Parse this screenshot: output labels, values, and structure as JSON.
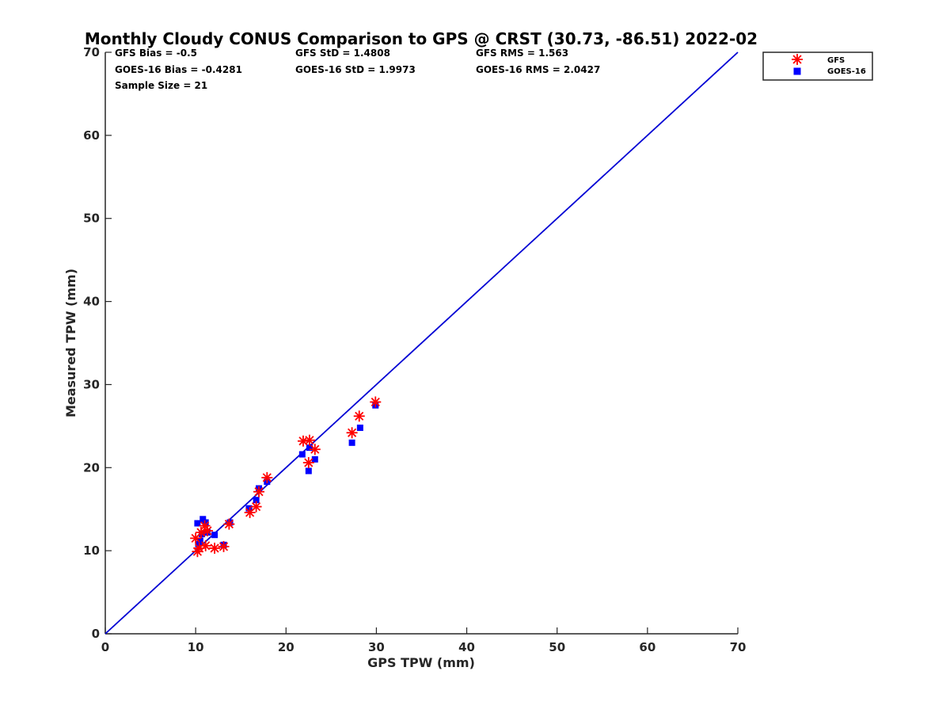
{
  "chart_data": {
    "type": "scatter",
    "title": "Monthly Cloudy CONUS Comparison to GPS @ CRST (30.73, -86.51) 2022-02",
    "xlabel": "GPS TPW (mm)",
    "ylabel": "Measured TPW (mm)",
    "xlim": [
      0,
      70
    ],
    "ylim": [
      0,
      70
    ],
    "xticks": [
      0,
      10,
      20,
      30,
      40,
      50,
      60,
      70
    ],
    "yticks": [
      0,
      10,
      20,
      30,
      40,
      50,
      60,
      70
    ],
    "grid": false,
    "legend_position": "outside-top-right",
    "stats": {
      "gfs_bias": "GFS Bias = -0.5",
      "goes_bias": "GOES-16 Bias = -0.4281",
      "sample_size": "Sample Size = 21",
      "gfs_std": "GFS StD = 1.4808",
      "goes_std": "GOES-16 StD = 1.9973",
      "gfs_rms": "GFS RMS = 1.563",
      "goes_rms": "GOES-16 RMS = 2.0427"
    },
    "reference_line": {
      "x": [
        0,
        70
      ],
      "y": [
        0,
        70
      ],
      "color": "#0000d4"
    },
    "series": [
      {
        "name": "GFS",
        "marker": "asterisk",
        "color": "#ff0000",
        "points": [
          [
            10.0,
            11.5
          ],
          [
            10.2,
            9.9
          ],
          [
            10.6,
            12.2
          ],
          [
            11.0,
            13.0
          ],
          [
            11.1,
            10.6
          ],
          [
            12.1,
            10.3
          ],
          [
            13.1,
            10.5
          ],
          [
            13.7,
            13.2
          ],
          [
            16.0,
            14.6
          ],
          [
            16.7,
            15.3
          ],
          [
            17.0,
            17.1
          ],
          [
            17.9,
            18.8
          ],
          [
            21.9,
            23.2
          ],
          [
            22.6,
            23.3
          ],
          [
            22.5,
            20.6
          ],
          [
            23.2,
            22.2
          ],
          [
            27.3,
            24.2
          ],
          [
            28.1,
            26.2
          ],
          [
            29.9,
            27.9
          ],
          [
            10.4,
            10.3
          ],
          [
            11.3,
            12.4
          ]
        ]
      },
      {
        "name": "GOES-16",
        "marker": "square",
        "color": "#0000ff",
        "points": [
          [
            10.2,
            13.3
          ],
          [
            10.3,
            10.8
          ],
          [
            10.5,
            11.2
          ],
          [
            10.8,
            13.8
          ],
          [
            11.1,
            13.4
          ],
          [
            11.3,
            12.2
          ],
          [
            12.1,
            11.9
          ],
          [
            13.1,
            10.7
          ],
          [
            13.8,
            13.4
          ],
          [
            15.9,
            15.1
          ],
          [
            16.7,
            16.1
          ],
          [
            17.0,
            17.5
          ],
          [
            17.9,
            18.3
          ],
          [
            21.8,
            21.6
          ],
          [
            22.5,
            19.6
          ],
          [
            22.6,
            22.4
          ],
          [
            23.2,
            21.0
          ],
          [
            27.3,
            23.0
          ],
          [
            28.2,
            24.8
          ],
          [
            29.9,
            27.5
          ],
          [
            10.7,
            12.0
          ]
        ]
      }
    ]
  }
}
